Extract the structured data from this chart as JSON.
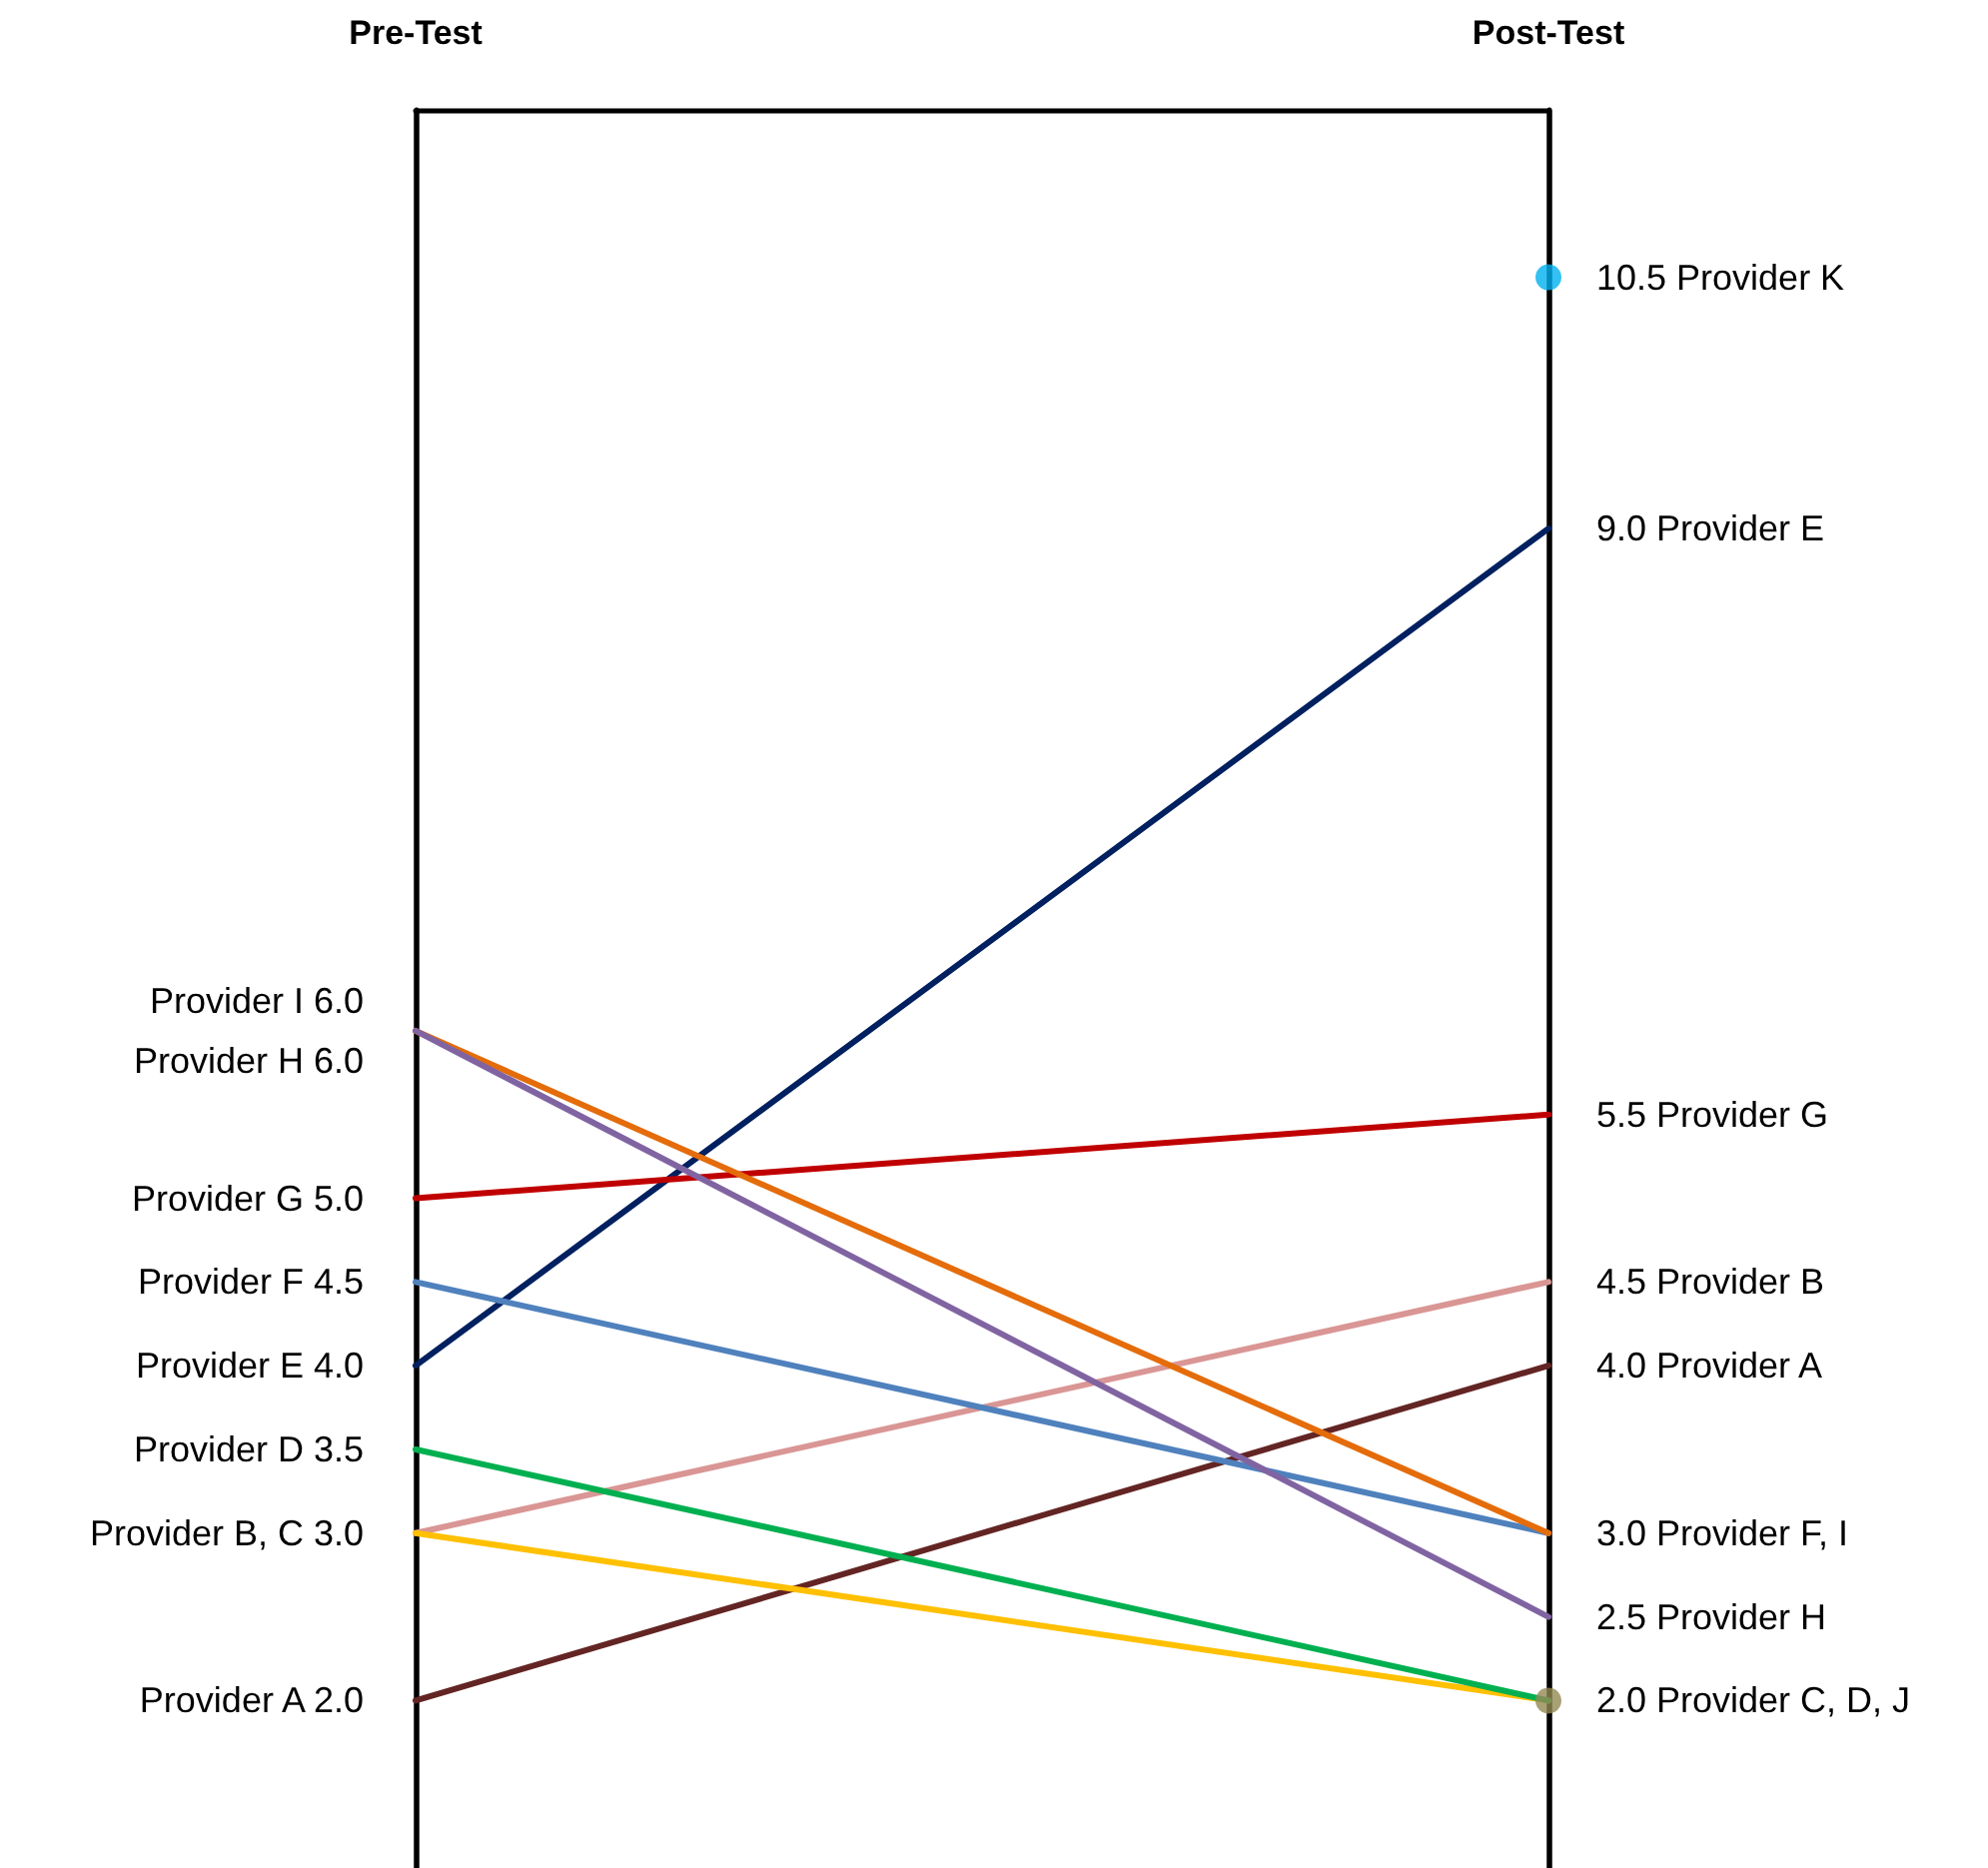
{
  "chart_data": {
    "type": "line",
    "categories": [
      "Pre-Test",
      "Post-Test"
    ],
    "ylim": [
      1,
      11.5
    ],
    "grid": "x",
    "marker": "none",
    "series": [
      {
        "color": "#632523",
        "values": [
          2.0,
          4.0
        ],
        "value_labels": [
          "Provider A 2.0",
          "4.0 Provider A"
        ]
      },
      {
        "color": "#d99694",
        "values": [
          3.0,
          4.5
        ],
        "value_labels": [
          "Provider B, C 3.0",
          "4.5 Provider B"
        ]
      },
      {
        "color": "#ffc000",
        "values": [
          3.0,
          2.0
        ],
        "value_labels": [
          null,
          "2.0 Provider C, D, J"
        ]
      },
      {
        "color": "#00b050",
        "values": [
          3.5,
          2.0
        ],
        "value_labels": [
          "Provider D 3.5",
          null
        ]
      },
      {
        "color": "#002060",
        "values": [
          4.0,
          9.0
        ],
        "value_labels": [
          "Provider E 4.0",
          "9.0 Provider E"
        ]
      },
      {
        "color": "#4f81bd",
        "values": [
          4.5,
          3.0
        ],
        "value_labels": [
          "Provider F 4.5",
          "3.0 Provider F, I"
        ]
      },
      {
        "color": "#c00000",
        "values": [
          5.0,
          5.5
        ],
        "value_labels": [
          "Provider G 5.0",
          "5.5 Provider G"
        ]
      },
      {
        "color": "#e46c0a",
        "values": [
          6.0,
          3.0
        ],
        "value_labels": [
          "Provider I 6.0",
          null
        ]
      },
      {
        "color": "#8064a2",
        "values": [
          6.0,
          2.5
        ],
        "value_labels": [
          "Provider H 6.0",
          "2.5 Provider H"
        ]
      },
      {
        "color": "#948a54",
        "type": "scatter",
        "marker": "circle",
        "values": [
          null,
          2.0
        ],
        "value_labels": [
          null,
          null
        ]
      },
      {
        "color": "#00b0f0",
        "type": "scatter",
        "marker": "circle",
        "values": [
          null,
          10.5
        ],
        "value_labels": [
          null,
          "10.5 Provider K"
        ]
      }
    ]
  }
}
